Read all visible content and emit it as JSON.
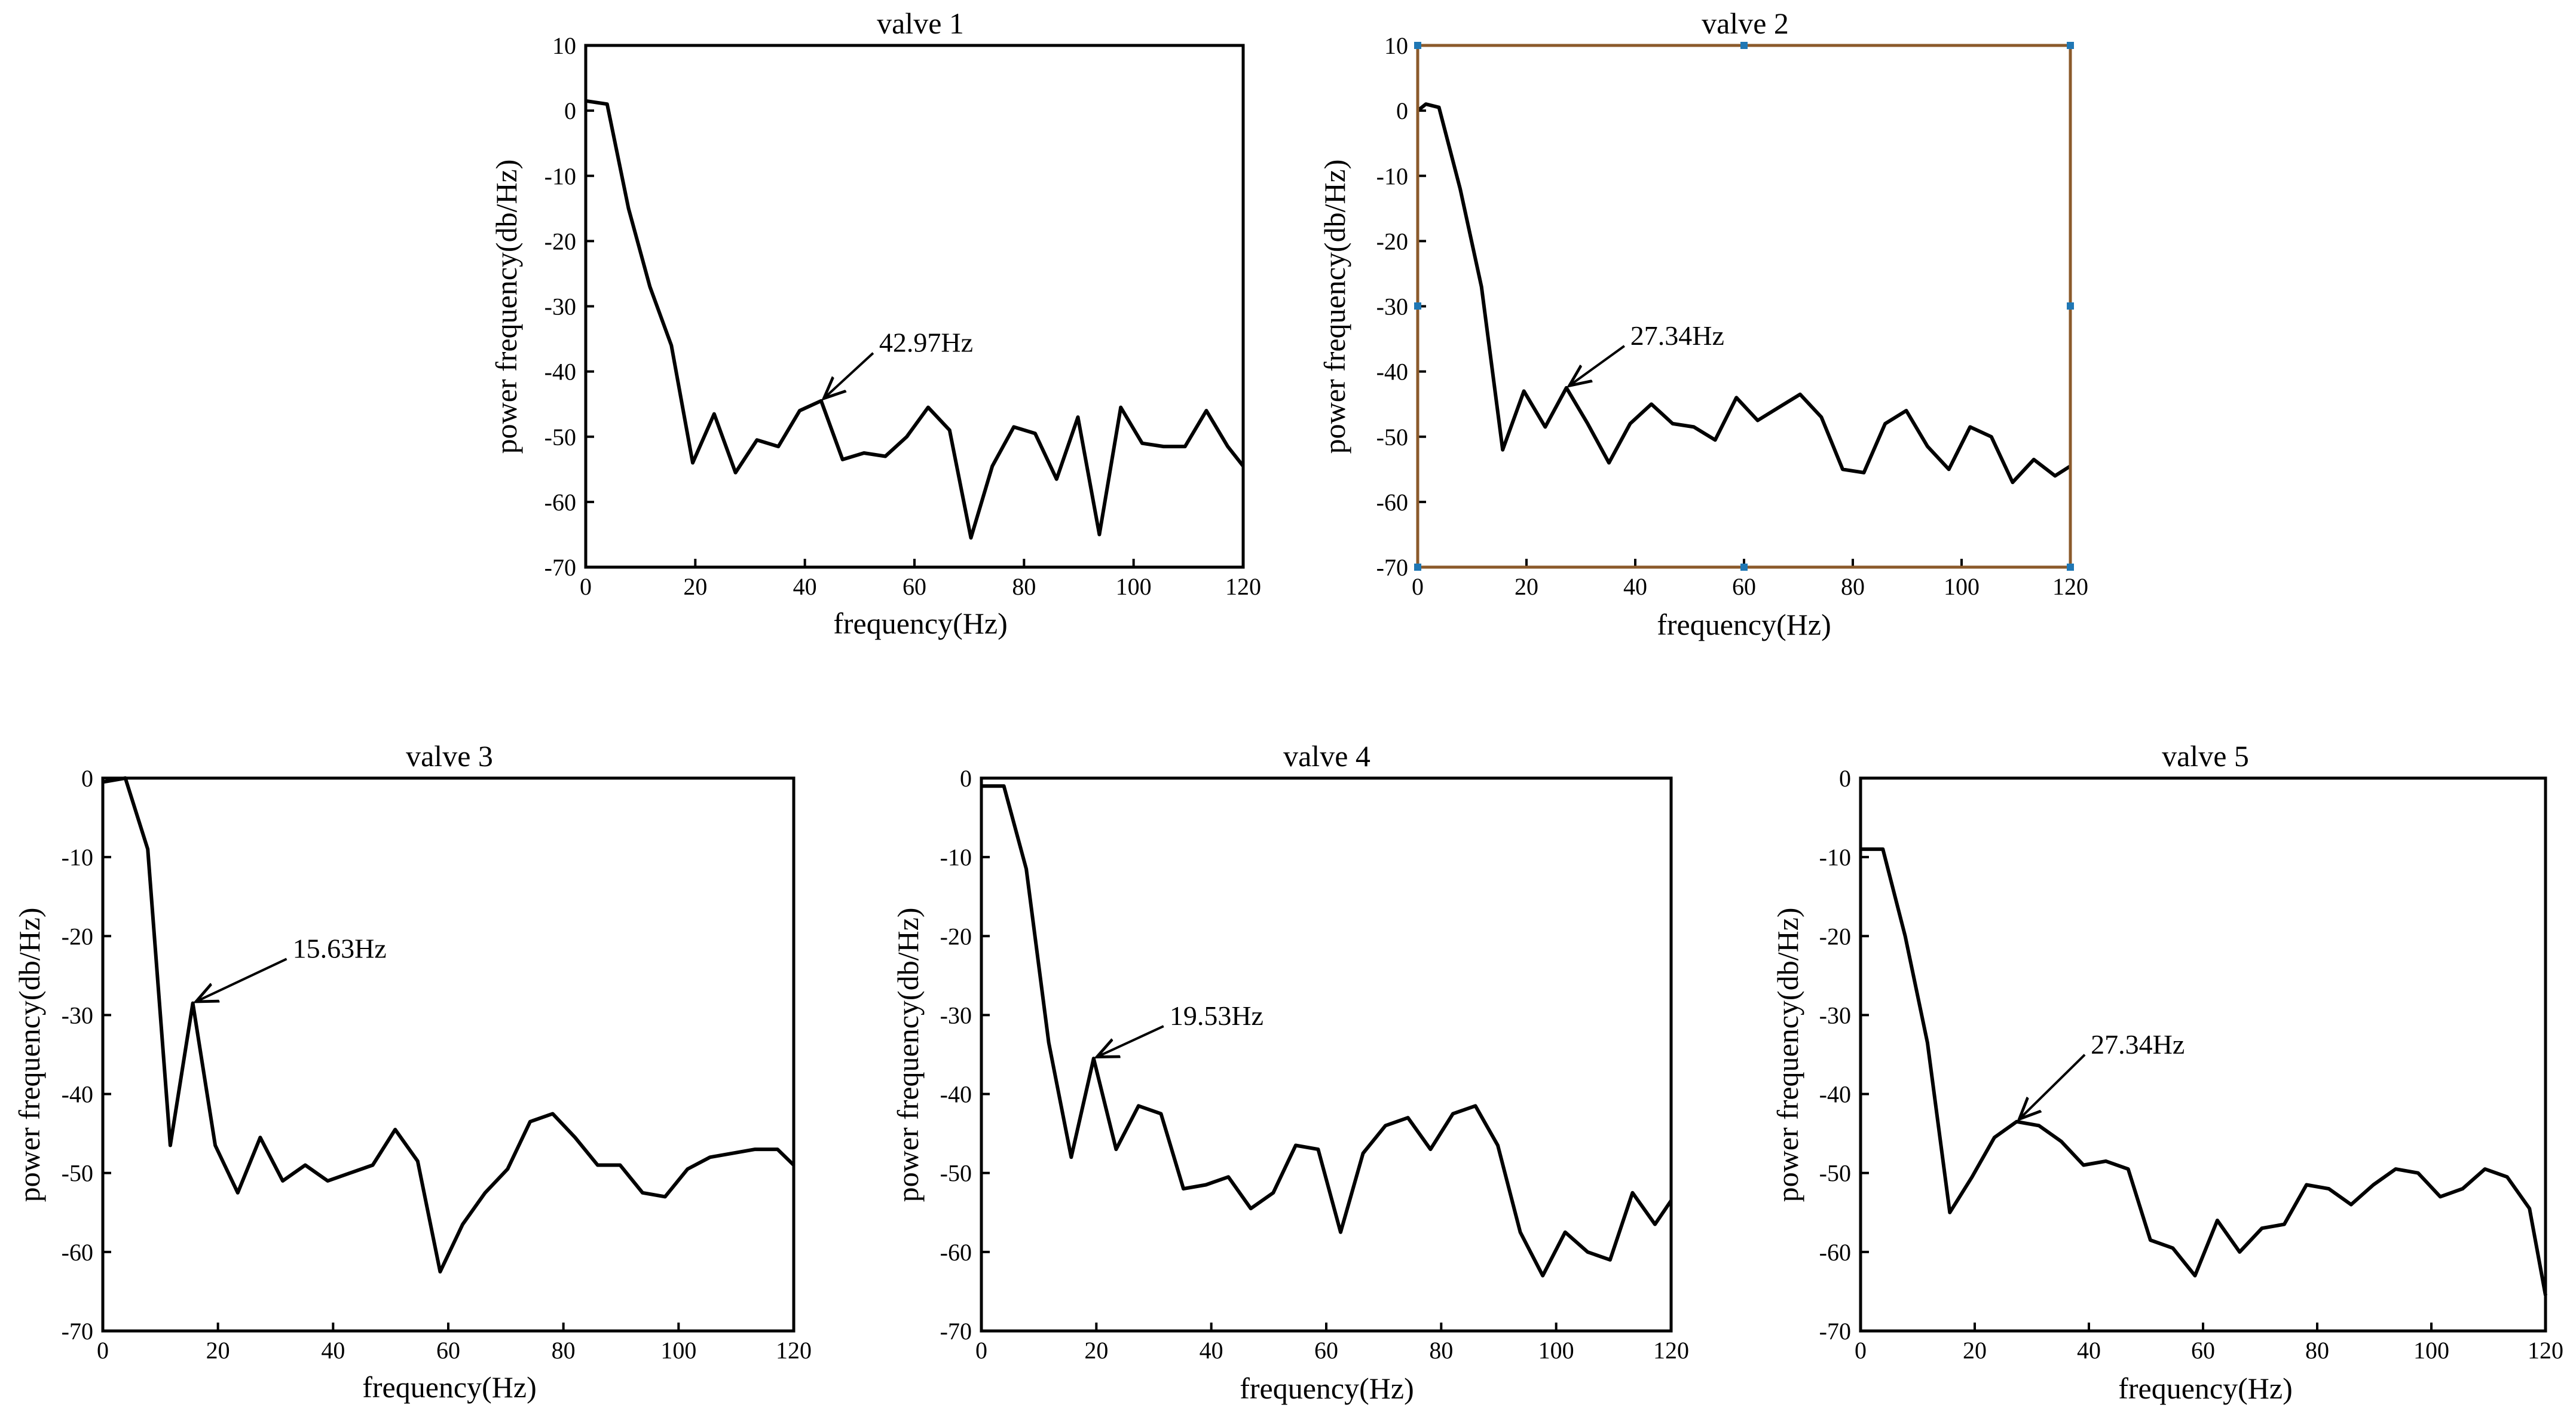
{
  "figure": {
    "xlabel": "frequency(Hz)",
    "ylabel": "power frequency(db/Hz)",
    "line_color": "#000000",
    "selected_frame_color": "#8b5a2b",
    "selection_handle_color": "#1f77b4"
  },
  "chart_data": [
    {
      "type": "line",
      "title": "valve 1",
      "xlabel": "frequency(Hz)",
      "ylabel": "power frequency(db/Hz)",
      "xlim": [
        0,
        120
      ],
      "ylim": [
        -70,
        10
      ],
      "xticks": [
        0,
        20,
        40,
        60,
        80,
        100,
        120
      ],
      "yticks": [
        10,
        0,
        -10,
        -20,
        -30,
        -40,
        -50,
        -60,
        -70
      ],
      "selected": false,
      "series": [
        {
          "name": "valve 1",
          "x": [
            0,
            3.91,
            7.81,
            11.72,
            15.63,
            19.53,
            23.44,
            27.34,
            31.25,
            35.16,
            39.06,
            42.97,
            46.88,
            50.78,
            54.69,
            58.59,
            62.5,
            66.41,
            70.31,
            74.22,
            78.13,
            82.03,
            85.94,
            89.84,
            93.75,
            97.66,
            101.56,
            105.47,
            109.38,
            113.28,
            117.19,
            120
          ],
          "y": [
            1.5,
            1,
            -15,
            -27,
            -36,
            -54,
            -46.5,
            -55.5,
            -50.5,
            -51.5,
            -46,
            -44.5,
            -53.5,
            -52.5,
            -53,
            -50,
            -45.5,
            -49,
            -65.5,
            -54.5,
            -48.5,
            -49.5,
            -56.5,
            -47,
            -65,
            -45.5,
            -51,
            -51.5,
            -51.5,
            -46,
            -51.5,
            -54.5
          ]
        }
      ],
      "annotation": {
        "text": "42.97Hz",
        "x": 42.97,
        "y": -44.5
      }
    },
    {
      "type": "line",
      "title": "valve 2",
      "xlabel": "frequency(Hz)",
      "ylabel": "power frequency(db/Hz)",
      "xlim": [
        0,
        120
      ],
      "ylim": [
        -70,
        10
      ],
      "xticks": [
        0,
        20,
        40,
        60,
        80,
        100,
        120
      ],
      "yticks": [
        10,
        0,
        -10,
        -20,
        -30,
        -40,
        -50,
        -60,
        -70
      ],
      "selected": true,
      "series": [
        {
          "name": "valve 2",
          "x": [
            0,
            1.5,
            3.91,
            7.81,
            11.72,
            15.63,
            19.53,
            23.44,
            27.34,
            31.25,
            35.16,
            39.06,
            42.97,
            46.88,
            50.78,
            54.69,
            58.59,
            62.5,
            66.41,
            70.31,
            74.22,
            78.13,
            82.03,
            85.94,
            89.84,
            93.75,
            97.66,
            101.56,
            105.47,
            109.38,
            113.28,
            117.19,
            120
          ],
          "y": [
            0,
            1,
            0.5,
            -12,
            -27,
            -52,
            -43,
            -48.5,
            -42.5,
            -48,
            -54,
            -48,
            -45,
            -48,
            -48.5,
            -50.5,
            -44,
            -47.5,
            -45.5,
            -43.5,
            -47,
            -55,
            -55.5,
            -48,
            -46,
            -51.5,
            -55,
            -48.5,
            -50,
            -57,
            -53.5,
            -56,
            -54.5
          ]
        }
      ],
      "annotation": {
        "text": "27.34Hz",
        "x": 27.34,
        "y": -42.5
      }
    },
    {
      "type": "line",
      "title": "valve 3",
      "xlabel": "frequency(Hz)",
      "ylabel": "power frequency(db/Hz)",
      "xlim": [
        0,
        120
      ],
      "ylim": [
        -70,
        0
      ],
      "xticks": [
        0,
        20,
        40,
        60,
        80,
        100,
        120
      ],
      "yticks": [
        0,
        -10,
        -20,
        -30,
        -40,
        -50,
        -60,
        -70
      ],
      "selected": false,
      "series": [
        {
          "name": "valve 3",
          "x": [
            0,
            3.91,
            7.81,
            11.72,
            15.63,
            19.53,
            23.44,
            27.34,
            31.25,
            35.16,
            39.06,
            42.97,
            46.88,
            50.78,
            54.69,
            58.59,
            62.5,
            66.41,
            70.31,
            74.22,
            78.13,
            82.03,
            85.94,
            89.84,
            93.75,
            97.66,
            101.56,
            105.47,
            109.38,
            113.28,
            117.19,
            120
          ],
          "y": [
            -0.5,
            0,
            -9,
            -46.5,
            -28.5,
            -46.5,
            -52.5,
            -45.5,
            -51,
            -49,
            -51,
            -50,
            -49,
            -44.5,
            -48.5,
            -62.5,
            -56.5,
            -52.5,
            -49.5,
            -43.5,
            -42.5,
            -45.5,
            -49,
            -49,
            -52.5,
            -53,
            -49.5,
            -48,
            -47.5,
            -47,
            -47,
            -49
          ]
        }
      ],
      "annotation": {
        "text": "15.63Hz",
        "x": 15.63,
        "y": -28.5
      }
    },
    {
      "type": "line",
      "title": "valve 4",
      "xlabel": "frequency(Hz)",
      "ylabel": "power frequency(db/Hz)",
      "xlim": [
        0,
        120
      ],
      "ylim": [
        -70,
        0
      ],
      "xticks": [
        0,
        20,
        40,
        60,
        80,
        100,
        120
      ],
      "yticks": [
        0,
        -10,
        -20,
        -30,
        -40,
        -50,
        -60,
        -70
      ],
      "selected": false,
      "series": [
        {
          "name": "valve 4",
          "x": [
            0,
            3.91,
            7.81,
            11.72,
            15.63,
            19.53,
            23.44,
            27.34,
            31.25,
            35.16,
            39.06,
            42.97,
            46.88,
            50.78,
            54.69,
            58.59,
            62.5,
            66.41,
            70.31,
            74.22,
            78.13,
            82.03,
            85.94,
            89.84,
            93.75,
            97.66,
            101.56,
            105.47,
            109.38,
            113.28,
            117.19,
            120
          ],
          "y": [
            -1,
            -1,
            -11.5,
            -33.5,
            -48,
            -35.5,
            -47,
            -41.5,
            -42.5,
            -52,
            -51.5,
            -50.5,
            -54.5,
            -52.5,
            -46.5,
            -47,
            -57.5,
            -47.5,
            -44,
            -43,
            -47,
            -42.5,
            -41.5,
            -46.5,
            -57.5,
            -63,
            -57.5,
            -60,
            -61,
            -52.5,
            -56.5,
            -53.5
          ]
        }
      ],
      "annotation": {
        "text": "19.53Hz",
        "x": 19.53,
        "y": -35.5
      }
    },
    {
      "type": "line",
      "title": "valve 5",
      "xlabel": "frequency(Hz)",
      "ylabel": "power frequency(db/Hz)",
      "xlim": [
        0,
        120
      ],
      "ylim": [
        -70,
        0
      ],
      "xticks": [
        0,
        20,
        40,
        60,
        80,
        100,
        120
      ],
      "yticks": [
        0,
        -10,
        -20,
        -30,
        -40,
        -50,
        -60,
        -70
      ],
      "selected": false,
      "series": [
        {
          "name": "valve 5",
          "x": [
            0,
            3.91,
            7.81,
            11.72,
            15.63,
            19.53,
            23.44,
            27.34,
            31.25,
            35.16,
            39.06,
            42.97,
            46.88,
            50.78,
            54.69,
            58.59,
            62.5,
            66.41,
            70.31,
            74.22,
            78.13,
            82.03,
            85.94,
            89.84,
            93.75,
            97.66,
            101.56,
            105.47,
            109.38,
            113.28,
            117.19,
            120
          ],
          "y": [
            -9,
            -9,
            -20,
            -33.5,
            -55,
            -50.5,
            -45.5,
            -43.5,
            -44,
            -46,
            -49,
            -48.5,
            -49.5,
            -58.5,
            -59.5,
            -63,
            -56,
            -60,
            -57,
            -56.5,
            -51.5,
            -52,
            -54,
            -51.5,
            -49.5,
            -50,
            -53,
            -52,
            -49.5,
            -50.5,
            -54.5,
            -65.5
          ]
        }
      ],
      "annotation": {
        "text": "27.34Hz",
        "x": 27.34,
        "y": -43.5
      }
    }
  ]
}
